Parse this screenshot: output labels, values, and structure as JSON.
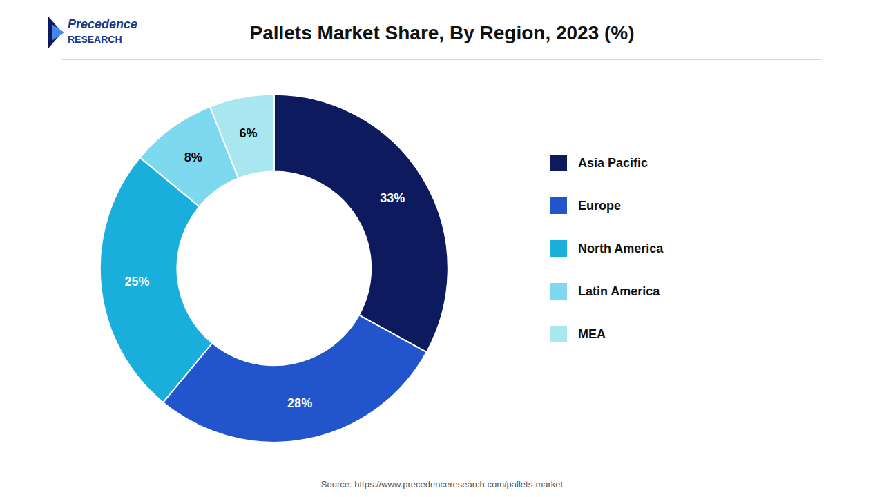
{
  "chart_data": {
    "type": "pie",
    "title": "Pallets Market Share, By Region, 2023 (%)",
    "categories": [
      "Asia Pacific",
      "Europe",
      "North America",
      "Latin America",
      "MEA"
    ],
    "values": [
      33,
      28,
      25,
      8,
      6
    ],
    "value_labels": [
      "33%",
      "28%",
      "25%",
      "8%",
      "6%"
    ],
    "colors": [
      "#0d1b5e",
      "#2255cc",
      "#1aaedc",
      "#7dd9f0",
      "#a8e6f0"
    ],
    "data_labels": true,
    "legend": "right",
    "annotations": [
      "Source: https://www.precedenceresearch.com/pallets-market",
      "Precedence",
      "RESEARCH"
    ]
  }
}
